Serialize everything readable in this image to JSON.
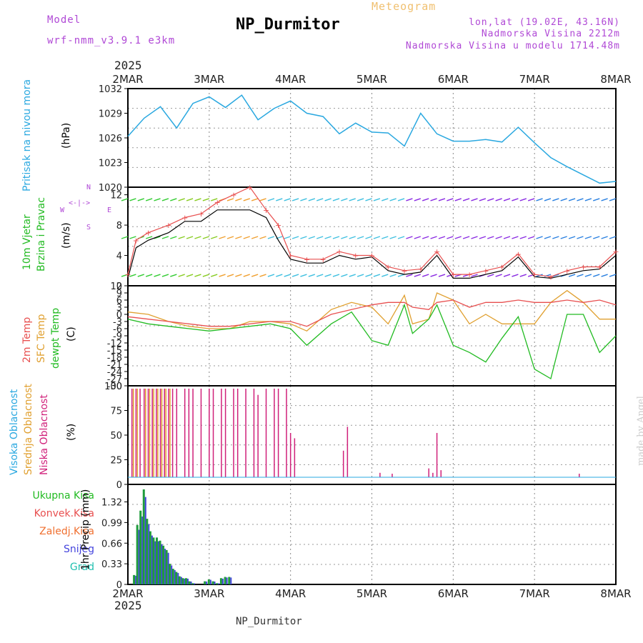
{
  "header": {
    "model_label": "Model",
    "model_name": "wrf-nmm_v3.9.1 e3km",
    "title": "NP_Durmitor",
    "subtitle": "Meteogram",
    "coords": "lon,lat (19.02E, 43.16N)",
    "elevation": "Nadmorska Visina 2212m",
    "model_elevation": "Nadmorska Visina u modelu 1714.48m"
  },
  "footer": {
    "station": "NP_Durmitor",
    "credit": "made by Angel"
  },
  "colors": {
    "pressure": "#2aa8e0",
    "wind_label": "#22bb22",
    "temp2m": "#e85050",
    "sfc": "#e0a030",
    "dew": "#22bb22",
    "high": "#2aa8e0",
    "mid": "#e0a030",
    "low": "#d0207a",
    "snow": "#4444dd",
    "grad": "#22c0b0",
    "rain": "#1f9c3c"
  },
  "time_axis": {
    "year": "2025",
    "ticks": [
      "2MAR",
      "3MAR",
      "4MAR",
      "5MAR",
      "6MAR",
      "7MAR",
      "8MAR"
    ]
  },
  "chart_data": [
    {
      "type": "line",
      "panel": "pressure",
      "ylabel": "Pritisak na nivou mora",
      "unit": "(hPa)",
      "ylim": [
        1020,
        1032
      ],
      "yticks": [
        "1032",
        "1029",
        "1026",
        "1023",
        "1020"
      ],
      "x": [
        0,
        0.2,
        0.4,
        0.6,
        0.8,
        1.0,
        1.2,
        1.4,
        1.6,
        1.8,
        2.0,
        2.2,
        2.4,
        2.6,
        2.8,
        3.0,
        3.2,
        3.4,
        3.6,
        3.8,
        4.0,
        4.2,
        4.4,
        4.6,
        4.8,
        5.0,
        5.2,
        5.4,
        5.6,
        5.8,
        6.0
      ],
      "values": [
        1026.2,
        1028.4,
        1029.8,
        1027.2,
        1030.2,
        1031.0,
        1029.7,
        1031.2,
        1028.2,
        1029.6,
        1030.5,
        1029.0,
        1028.6,
        1026.5,
        1027.8,
        1026.7,
        1026.6,
        1025.0,
        1029.0,
        1026.5,
        1025.6,
        1025.6,
        1025.8,
        1025.5,
        1027.3,
        1025.4,
        1023.6,
        1022.5,
        1021.5,
        1020.5,
        1020.7
      ]
    },
    {
      "type": "line",
      "panel": "wind",
      "ylabel": "10m Vjetar",
      "ylabel2": "Brzina i Pravac",
      "unit": "(m/s)",
      "ylim": [
        0,
        13
      ],
      "yticks": [
        "12",
        "8",
        "4",
        "0"
      ],
      "compass": {
        "n": "N",
        "s": "S",
        "w": "W",
        "e": "E"
      },
      "x": [
        0,
        0.1,
        0.25,
        0.5,
        0.7,
        0.9,
        1.1,
        1.3,
        1.5,
        1.7,
        1.85,
        2.0,
        2.2,
        2.4,
        2.6,
        2.8,
        3.0,
        3.2,
        3.4,
        3.6,
        3.8,
        4.0,
        4.2,
        4.4,
        4.6,
        4.8,
        5.0,
        5.2,
        5.4,
        5.6,
        5.8,
        6.0
      ],
      "values": [
        1,
        5,
        6,
        7,
        8.5,
        8.5,
        10,
        10,
        10,
        9,
        6,
        3.5,
        3,
        3,
        4,
        3.5,
        3.8,
        2,
        1.5,
        1.8,
        4,
        1,
        1,
        1.5,
        2,
        3.8,
        1.2,
        1,
        1.5,
        2,
        2.2,
        4
      ],
      "gust": [
        1.5,
        6,
        7,
        8,
        9,
        9.5,
        11,
        12,
        13,
        10,
        8,
        4,
        3.5,
        3.5,
        4.5,
        4,
        4,
        2.5,
        2,
        2.2,
        4.5,
        1.5,
        1.5,
        2,
        2.5,
        4.2,
        1.5,
        1.2,
        2,
        2.5,
        2.5,
        4.5
      ]
    },
    {
      "type": "line",
      "panel": "temperature",
      "labels": [
        "2m Temp",
        "SFC Temp",
        "dewpt Temp"
      ],
      "unit": "(C)",
      "ylim": [
        -30,
        12
      ],
      "yticks": [
        "12",
        "9",
        "6",
        "3",
        "0",
        "-3",
        "-6",
        "-9",
        "-12",
        "-15",
        "-18",
        "-21",
        "-24",
        "-27",
        "-30"
      ],
      "x": [
        0,
        0.25,
        0.5,
        0.75,
        1.0,
        1.25,
        1.5,
        1.75,
        2.0,
        2.2,
        2.5,
        2.75,
        3.0,
        3.2,
        3.4,
        3.5,
        3.7,
        3.8,
        4.0,
        4.2,
        4.4,
        4.6,
        4.8,
        5.0,
        5.2,
        5.4,
        5.6,
        5.8,
        6.0
      ],
      "temp2m": [
        -1,
        -2,
        -3,
        -4,
        -5,
        -5,
        -4,
        -3,
        -3,
        -5,
        0,
        2,
        4,
        5,
        5,
        3,
        2,
        5,
        6,
        3,
        5,
        5,
        6,
        5,
        5,
        6,
        5,
        6,
        4
      ],
      "sfc": [
        1,
        0,
        -3,
        -5,
        -6,
        -6,
        -3,
        -3,
        -4,
        -7,
        2,
        5,
        3,
        -4,
        8,
        -4,
        -2,
        9,
        6,
        -4,
        0,
        -4,
        -4,
        -4,
        5,
        10,
        5,
        -2,
        -2
      ],
      "dew": [
        -2,
        -4,
        -5,
        -6,
        -7,
        -6,
        -5,
        -4,
        -6,
        -13,
        -4,
        1,
        -11,
        -13,
        4,
        -8,
        -2,
        4,
        -13,
        -16,
        -20,
        -10,
        -1,
        -23,
        -27,
        0,
        0,
        -16,
        -9
      ]
    },
    {
      "type": "bar",
      "panel": "clouds",
      "labels": [
        "Visoka Oblacnost",
        "Srednja Oblacnost",
        "Niska Oblacnost"
      ],
      "unit": "(%)",
      "ylim": [
        0,
        100
      ],
      "yticks": [
        "100",
        "75",
        "50",
        "25",
        "0"
      ],
      "low_x": [
        0.05,
        0.1,
        0.15,
        0.2,
        0.25,
        0.3,
        0.35,
        0.4,
        0.45,
        0.5,
        0.55,
        0.6,
        0.7,
        0.75,
        0.8,
        0.9,
        1.0,
        1.05,
        1.15,
        1.2,
        1.3,
        1.35,
        1.45,
        1.55,
        1.6,
        1.7,
        1.8,
        1.85,
        1.95,
        2.0,
        2.05,
        2.65,
        2.7,
        3.1,
        3.25,
        3.7,
        3.75,
        3.8,
        3.85,
        5.55
      ],
      "low_v": [
        100,
        100,
        100,
        100,
        100,
        100,
        100,
        100,
        100,
        100,
        100,
        100,
        100,
        100,
        100,
        100,
        100,
        100,
        100,
        100,
        100,
        100,
        100,
        100,
        93,
        100,
        100,
        100,
        100,
        50,
        44,
        30,
        57,
        5,
        4,
        10,
        5,
        50,
        8,
        4
      ],
      "mid_x": [
        0.05,
        0.1,
        0.2,
        0.25,
        0.3,
        0.35,
        0.4,
        0.45,
        0.5
      ],
      "mid_v": [
        100,
        100,
        100,
        100,
        100,
        100,
        100,
        100,
        100
      ]
    },
    {
      "type": "bar",
      "panel": "precip",
      "labels": [
        "Ukupna Kisa",
        "Konvek.Kisa",
        "Zaledj.Kisa",
        "Snijeg",
        "Grad"
      ],
      "unit": "1hr Precip (mm)",
      "ylim": [
        0,
        1.6
      ],
      "yticks": [
        "1.32",
        "0.99",
        "0.66",
        "0.33",
        "0"
      ],
      "x": [
        0.08,
        0.12,
        0.16,
        0.2,
        0.24,
        0.28,
        0.32,
        0.36,
        0.4,
        0.44,
        0.48,
        0.52,
        0.56,
        0.6,
        0.64,
        0.68,
        0.72,
        0.76,
        0.8,
        0.95,
        1.0,
        1.05,
        1.1,
        1.15,
        1.2,
        1.25
      ],
      "values": [
        0.15,
        0.95,
        1.18,
        1.52,
        1.05,
        0.85,
        0.75,
        0.75,
        0.7,
        0.62,
        0.55,
        0.33,
        0.25,
        0.2,
        0.13,
        0.1,
        0.1,
        0.05,
        0.02,
        0.05,
        0.08,
        0.05,
        0.02,
        0.1,
        0.12,
        0.12
      ]
    }
  ]
}
